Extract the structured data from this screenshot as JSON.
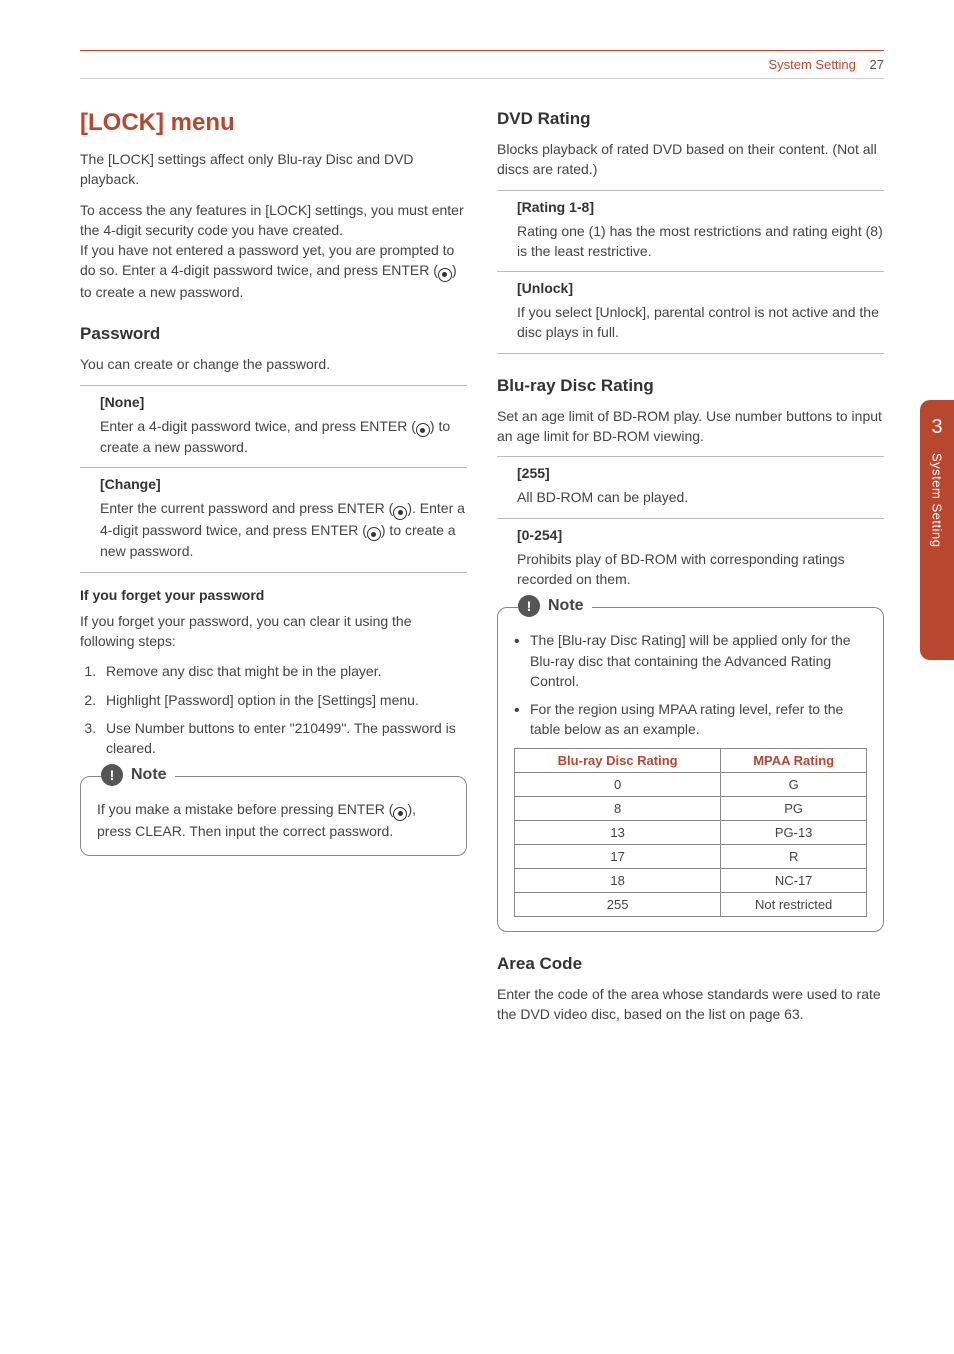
{
  "header": {
    "section": "System Setting",
    "page": "27"
  },
  "sidetab": {
    "num": "3",
    "text": "System Setting"
  },
  "left": {
    "h1": "[LOCK] menu",
    "p1": "The [LOCK] settings affect only Blu-ray Disc and DVD playback.",
    "p2a": "To access the any features in [LOCK] settings, you must enter the 4-digit security code you have created.",
    "p2b_a": "If you have not entered a password yet, you are prompted to do so. Enter a 4-digit password twice, and press ENTER (",
    "p2b_b": ") to create a new password.",
    "h2_pw": "Password",
    "pw_p": "You can create or change the password.",
    "none_label": "[None]",
    "none_a": "Enter a 4-digit password twice, and press ENTER (",
    "none_b": ") to create a new password.",
    "change_label": "[Change]",
    "change_a": "Enter the current password and press ENTER (",
    "change_b": "). Enter a 4-digit password twice, and press ENTER (",
    "change_c": ") to create a new password.",
    "forgot_h": "If you forget your password",
    "forgot_p": "If you forget your password, you can clear it using the following steps:",
    "steps": [
      "Remove any disc that might be in the player.",
      "Highlight [Password] option in the [Settings] menu.",
      "Use Number buttons to enter \"210499\". The password is cleared."
    ],
    "note_label": "Note",
    "note_a": "If you make a mistake before pressing ENTER (",
    "note_b": "), press CLEAR. Then input the correct password."
  },
  "right": {
    "h2_dvd": "DVD Rating",
    "dvd_p": "Blocks playback of rated DVD based on their content. (Not all discs are rated.)",
    "r18_label": "[Rating 1-8]",
    "r18_body": "Rating one (1) has the most restrictions and rating eight (8) is the least restrictive.",
    "unlock_label": "[Unlock]",
    "unlock_body": "If you select [Unlock], parental control is not active and the disc plays in full.",
    "h2_bd": "Blu-ray Disc Rating",
    "bd_p": "Set an age limit of BD-ROM play. Use number buttons to input an age limit for BD-ROM viewing.",
    "b255_label": "[255]",
    "b255_body": "All BD-ROM can be played.",
    "b0254_label": "[0-254]",
    "b0254_body": "Prohibits play of BD-ROM with corresponding ratings recorded on them.",
    "note_label": "Note",
    "note_items": [
      "The [Blu-ray Disc Rating] will be applied only for the Blu-ray disc that containing the Advanced Rating Control.",
      "For the region using MPAA rating level, refer to the table below as an example."
    ],
    "table": {
      "h1": "Blu-ray Disc Rating",
      "h2": "MPAA Rating",
      "rows": [
        [
          "0",
          "G"
        ],
        [
          "8",
          "PG"
        ],
        [
          "13",
          "PG-13"
        ],
        [
          "17",
          "R"
        ],
        [
          "18",
          "NC-17"
        ],
        [
          "255",
          "Not restricted"
        ]
      ]
    },
    "h2_area": "Area Code",
    "area_p": "Enter the code of the area whose standards were used to rate the DVD video disc, based on the list on page 63."
  }
}
